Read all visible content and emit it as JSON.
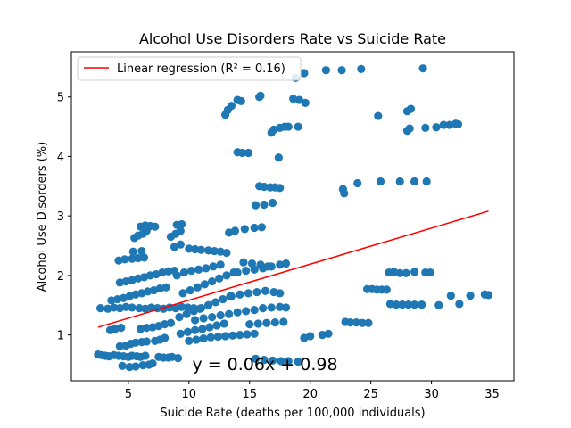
{
  "chart_data": {
    "type": "scatter",
    "title": "Alcohol Use Disorders Rate vs Suicide Rate",
    "xlabel": "Suicide Rate (deaths per 100,000 individuals)",
    "ylabel": "Alcohol Use Disorders (%)",
    "xlim": [
      0.3,
      36.8
    ],
    "ylim": [
      0.23,
      5.76
    ],
    "xticks": [
      5,
      10,
      15,
      20,
      25,
      30,
      35
    ],
    "yticks": [
      1,
      2,
      3,
      4,
      5
    ],
    "grid": false,
    "legend": {
      "placement": "top-left",
      "entries": [
        "Linear regression (R² = 0.16)"
      ]
    },
    "annotation": "y = 0.06x + 0.98",
    "colors": {
      "points": "#1f77b4",
      "regression": "#ff0000"
    },
    "regression": {
      "slope": 0.06,
      "intercept": 0.98,
      "x": [
        2.5,
        34.7
      ],
      "y": [
        1.13,
        3.08
      ]
    },
    "series": [
      {
        "name": "",
        "points": [
          [
            2.5,
            0.67
          ],
          [
            2.8,
            0.66
          ],
          [
            3.1,
            0.65
          ],
          [
            3.4,
            0.64
          ],
          [
            3.8,
            0.66
          ],
          [
            4.2,
            0.65
          ],
          [
            4.6,
            0.64
          ],
          [
            5.0,
            0.63
          ],
          [
            5.3,
            0.65
          ],
          [
            5.7,
            0.64
          ],
          [
            6.0,
            0.63
          ],
          [
            6.4,
            0.65
          ],
          [
            7.5,
            0.63
          ],
          [
            7.9,
            0.62
          ],
          [
            8.3,
            0.62
          ],
          [
            8.6,
            0.63
          ],
          [
            9.1,
            0.61
          ],
          [
            4.5,
            0.48
          ],
          [
            5.1,
            0.46
          ],
          [
            5.6,
            0.47
          ],
          [
            6.2,
            0.49
          ],
          [
            6.7,
            0.5
          ],
          [
            7.0,
            0.52
          ],
          [
            4.3,
            0.81
          ],
          [
            4.8,
            0.82
          ],
          [
            5.2,
            0.85
          ],
          [
            5.6,
            0.87
          ],
          [
            6.1,
            0.88
          ],
          [
            6.5,
            0.89
          ],
          [
            7.2,
            0.9
          ],
          [
            7.6,
            0.92
          ],
          [
            8.0,
            0.95
          ],
          [
            3.5,
            1.08
          ],
          [
            3.9,
            1.1
          ],
          [
            4.4,
            1.12
          ],
          [
            6.0,
            1.1
          ],
          [
            6.5,
            1.12
          ],
          [
            7.0,
            1.13
          ],
          [
            7.5,
            1.15
          ],
          [
            8.0,
            1.18
          ],
          [
            8.5,
            1.2
          ],
          [
            2.7,
            1.45
          ],
          [
            3.3,
            1.44
          ],
          [
            3.8,
            1.46
          ],
          [
            4.3,
            1.45
          ],
          [
            4.8,
            1.47
          ],
          [
            5.3,
            1.46
          ],
          [
            5.9,
            1.45
          ],
          [
            6.4,
            1.44
          ],
          [
            6.9,
            1.46
          ],
          [
            7.4,
            1.45
          ],
          [
            7.9,
            1.44
          ],
          [
            8.4,
            1.46
          ],
          [
            8.9,
            1.45
          ],
          [
            9.4,
            1.47
          ],
          [
            9.9,
            1.46
          ],
          [
            10.4,
            1.45
          ],
          [
            10.9,
            1.44
          ],
          [
            3.6,
            1.58
          ],
          [
            4.1,
            1.6
          ],
          [
            4.6,
            1.62
          ],
          [
            5.1,
            1.65
          ],
          [
            5.6,
            1.68
          ],
          [
            6.1,
            1.7
          ],
          [
            6.6,
            1.73
          ],
          [
            7.1,
            1.75
          ],
          [
            7.6,
            1.78
          ],
          [
            8.1,
            1.8
          ],
          [
            4.3,
            1.88
          ],
          [
            4.8,
            1.9
          ],
          [
            5.3,
            1.92
          ],
          [
            5.8,
            1.95
          ],
          [
            6.3,
            1.97
          ],
          [
            6.8,
            2.0
          ],
          [
            7.3,
            2.02
          ],
          [
            7.8,
            2.05
          ],
          [
            8.3,
            2.07
          ],
          [
            8.8,
            2.08
          ],
          [
            4.2,
            2.25
          ],
          [
            4.7,
            2.27
          ],
          [
            5.3,
            2.28
          ],
          [
            5.8,
            2.29
          ],
          [
            6.3,
            2.3
          ],
          [
            5.4,
            2.4
          ],
          [
            6.1,
            2.41
          ],
          [
            5.5,
            2.63
          ],
          [
            5.8,
            2.67
          ],
          [
            6.2,
            2.7
          ],
          [
            6.5,
            2.75
          ],
          [
            6.0,
            2.82
          ],
          [
            6.4,
            2.84
          ],
          [
            6.8,
            2.83
          ],
          [
            7.2,
            2.82
          ],
          [
            8.5,
            2.65
          ],
          [
            8.9,
            2.7
          ],
          [
            9.3,
            2.75
          ],
          [
            9.0,
            2.85
          ],
          [
            9.4,
            2.86
          ],
          [
            8.8,
            2.48
          ],
          [
            9.3,
            2.52
          ],
          [
            10.0,
            2.45
          ],
          [
            10.5,
            2.44
          ],
          [
            11.0,
            2.43
          ],
          [
            11.6,
            2.42
          ],
          [
            12.1,
            2.41
          ],
          [
            12.6,
            2.4
          ],
          [
            13.1,
            2.38
          ],
          [
            13.3,
            2.72
          ],
          [
            13.8,
            2.75
          ],
          [
            14.6,
            2.78
          ],
          [
            15.4,
            2.8
          ],
          [
            16.0,
            2.81
          ],
          [
            9.2,
            1.3
          ],
          [
            9.8,
            1.35
          ],
          [
            10.4,
            1.4
          ],
          [
            11.0,
            1.45
          ],
          [
            11.6,
            1.5
          ],
          [
            12.2,
            1.55
          ],
          [
            12.8,
            1.6
          ],
          [
            13.4,
            1.65
          ],
          [
            9.5,
            1.7
          ],
          [
            10.1,
            1.75
          ],
          [
            10.7,
            1.8
          ],
          [
            11.3,
            1.85
          ],
          [
            11.9,
            1.9
          ],
          [
            12.5,
            1.95
          ],
          [
            13.1,
            2.0
          ],
          [
            13.7,
            2.05
          ],
          [
            9.0,
            2.0
          ],
          [
            9.6,
            2.05
          ],
          [
            10.2,
            2.08
          ],
          [
            10.8,
            2.1
          ],
          [
            11.4,
            2.12
          ],
          [
            12.0,
            2.15
          ],
          [
            12.6,
            2.18
          ],
          [
            9.3,
            1.02
          ],
          [
            9.9,
            1.05
          ],
          [
            10.5,
            1.08
          ],
          [
            11.1,
            1.1
          ],
          [
            11.7,
            1.13
          ],
          [
            12.3,
            1.16
          ],
          [
            12.9,
            1.19
          ],
          [
            10.0,
            0.9
          ],
          [
            10.6,
            0.92
          ],
          [
            11.2,
            0.94
          ],
          [
            11.8,
            0.96
          ],
          [
            12.4,
            0.97
          ],
          [
            13.0,
            0.98
          ],
          [
            13.6,
            0.99
          ],
          [
            14.2,
            1.0
          ],
          [
            14.8,
            1.01
          ],
          [
            15.4,
            1.02
          ],
          [
            10.5,
            1.25
          ],
          [
            11.2,
            1.28
          ],
          [
            11.9,
            1.3
          ],
          [
            12.6,
            1.33
          ],
          [
            13.3,
            1.35
          ],
          [
            14.0,
            1.38
          ],
          [
            14.7,
            1.4
          ],
          [
            15.4,
            1.42
          ],
          [
            16.1,
            1.45
          ],
          [
            16.8,
            1.46
          ],
          [
            17.5,
            1.47
          ],
          [
            18.0,
            1.46
          ],
          [
            13.5,
            1.65
          ],
          [
            14.2,
            1.68
          ],
          [
            14.9,
            1.7
          ],
          [
            15.6,
            1.72
          ],
          [
            16.3,
            1.74
          ],
          [
            17.0,
            1.72
          ],
          [
            17.5,
            1.7
          ],
          [
            14.0,
            2.05
          ],
          [
            14.7,
            2.08
          ],
          [
            15.4,
            2.1
          ],
          [
            16.1,
            2.12
          ],
          [
            16.8,
            2.15
          ],
          [
            17.5,
            2.18
          ],
          [
            18.0,
            2.2
          ],
          [
            14.5,
            2.22
          ],
          [
            15.2,
            2.2
          ],
          [
            15.9,
            2.18
          ],
          [
            16.5,
            2.15
          ],
          [
            15.0,
            1.18
          ],
          [
            15.7,
            1.19
          ],
          [
            16.4,
            1.2
          ],
          [
            17.1,
            1.21
          ],
          [
            17.8,
            1.22
          ],
          [
            15.5,
            0.6
          ],
          [
            16.2,
            0.58
          ],
          [
            16.9,
            0.57
          ],
          [
            17.6,
            0.56
          ],
          [
            18.2,
            0.56
          ],
          [
            19.0,
            0.55
          ],
          [
            19.5,
            0.95
          ],
          [
            20.0,
            0.98
          ],
          [
            21.0,
            1.0
          ],
          [
            21.5,
            1.02
          ],
          [
            22.9,
            1.22
          ],
          [
            23.3,
            1.21
          ],
          [
            23.8,
            1.21
          ],
          [
            24.3,
            1.2
          ],
          [
            24.8,
            1.2
          ],
          [
            24.7,
            1.77
          ],
          [
            25.1,
            1.77
          ],
          [
            25.5,
            1.76
          ],
          [
            25.9,
            1.76
          ],
          [
            26.3,
            1.76
          ],
          [
            26.5,
            2.05
          ],
          [
            26.9,
            2.06
          ],
          [
            27.4,
            2.04
          ],
          [
            27.9,
            2.04
          ],
          [
            28.6,
            2.06
          ],
          [
            29.5,
            2.05
          ],
          [
            29.9,
            2.05
          ],
          [
            26.6,
            1.52
          ],
          [
            27.1,
            1.51
          ],
          [
            27.6,
            1.51
          ],
          [
            28.1,
            1.51
          ],
          [
            28.6,
            1.51
          ],
          [
            29.2,
            1.51
          ],
          [
            30.6,
            1.5
          ],
          [
            31.6,
            1.66
          ],
          [
            32.3,
            1.52
          ],
          [
            33.2,
            1.66
          ],
          [
            34.4,
            1.68
          ],
          [
            34.7,
            1.67
          ],
          [
            13.0,
            4.7
          ],
          [
            13.2,
            4.78
          ],
          [
            13.5,
            4.85
          ],
          [
            14.0,
            4.95
          ],
          [
            14.3,
            4.93
          ],
          [
            15.8,
            5.0
          ],
          [
            15.9,
            5.02
          ],
          [
            16.8,
            4.4
          ],
          [
            17.0,
            4.45
          ],
          [
            17.5,
            4.48
          ],
          [
            17.9,
            4.5
          ],
          [
            18.2,
            4.5
          ],
          [
            14.0,
            4.07
          ],
          [
            14.4,
            4.06
          ],
          [
            14.9,
            4.06
          ],
          [
            17.4,
            3.98
          ],
          [
            15.8,
            3.5
          ],
          [
            16.2,
            3.49
          ],
          [
            16.7,
            3.48
          ],
          [
            17.1,
            3.48
          ],
          [
            17.5,
            3.47
          ],
          [
            15.5,
            3.18
          ],
          [
            16.2,
            3.19
          ],
          [
            16.9,
            3.22
          ],
          [
            18.6,
            4.97
          ],
          [
            19.1,
            4.95
          ],
          [
            19.6,
            4.9
          ],
          [
            19.0,
            4.5
          ],
          [
            18.8,
            5.32
          ],
          [
            19.5,
            5.4
          ],
          [
            21.3,
            5.45
          ],
          [
            22.6,
            5.45
          ],
          [
            24.2,
            5.47
          ],
          [
            29.3,
            5.48
          ],
          [
            22.7,
            3.45
          ],
          [
            22.8,
            3.38
          ],
          [
            23.9,
            3.55
          ],
          [
            25.8,
            3.58
          ],
          [
            27.4,
            3.58
          ],
          [
            28.6,
            3.58
          ],
          [
            29.6,
            3.58
          ],
          [
            25.6,
            4.68
          ],
          [
            28.0,
            4.76
          ],
          [
            28.3,
            4.8
          ],
          [
            28.0,
            4.43
          ],
          [
            28.2,
            4.47
          ],
          [
            29.5,
            4.48
          ],
          [
            30.4,
            4.49
          ],
          [
            31.0,
            4.53
          ],
          [
            31.5,
            4.53
          ],
          [
            32.0,
            4.55
          ],
          [
            32.2,
            4.54
          ]
        ]
      }
    ]
  }
}
